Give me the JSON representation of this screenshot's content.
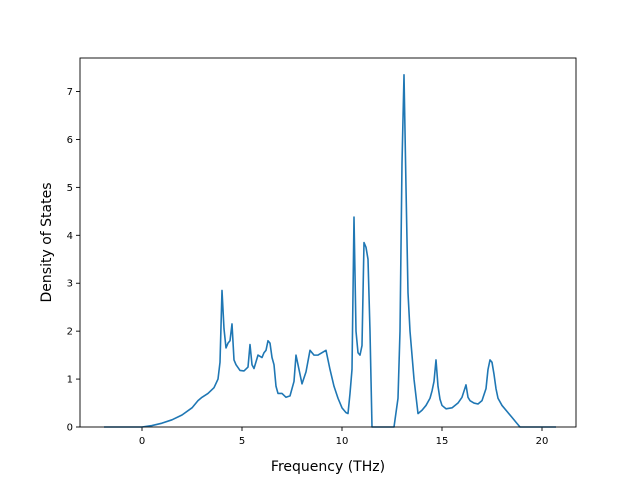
{
  "chart_data": {
    "type": "line",
    "title": "",
    "xlabel": "Frequency (THz)",
    "ylabel": "Density of States",
    "xlim": [
      -3.1,
      21.7
    ],
    "ylim": [
      0,
      7.7
    ],
    "x_ticks": [
      0,
      5,
      10,
      15,
      20
    ],
    "y_ticks": [
      0,
      1,
      2,
      3,
      4,
      5,
      6,
      7
    ],
    "grid": false,
    "legend": "none",
    "series": [
      {
        "color": "#1f77b4",
        "x": [
          -1.9,
          -1.0,
          0.0,
          0.5,
          1.0,
          1.5,
          2.0,
          2.5,
          2.8,
          3.0,
          3.3,
          3.6,
          3.8,
          3.9,
          4.0,
          4.1,
          4.2,
          4.3,
          4.4,
          4.5,
          4.6,
          4.7,
          4.9,
          5.1,
          5.3,
          5.4,
          5.5,
          5.6,
          5.8,
          6.0,
          6.1,
          6.2,
          6.3,
          6.4,
          6.5,
          6.6,
          6.7,
          6.8,
          7.0,
          7.2,
          7.4,
          7.6,
          7.7,
          7.8,
          8.0,
          8.2,
          8.4,
          8.6,
          8.8,
          9.0,
          9.2,
          9.4,
          9.6,
          9.8,
          10.0,
          10.2,
          10.3,
          10.4,
          10.5,
          10.6,
          10.7,
          10.8,
          10.9,
          11.0,
          11.1,
          11.2,
          11.3,
          11.4,
          11.5,
          11.6,
          11.8,
          12.2,
          12.6,
          12.8,
          12.9,
          13.0,
          13.1,
          13.2,
          13.3,
          13.4,
          13.5,
          13.6,
          13.8,
          14.0,
          14.2,
          14.4,
          14.5,
          14.6,
          14.7,
          14.8,
          14.9,
          15.0,
          15.2,
          15.5,
          15.8,
          16.0,
          16.1,
          16.2,
          16.3,
          16.4,
          16.6,
          16.8,
          17.0,
          17.2,
          17.3,
          17.4,
          17.5,
          17.6,
          17.7,
          17.8,
          18.0,
          18.3,
          18.5,
          18.7,
          18.9,
          19.5,
          20.0,
          20.7
        ],
        "y": [
          0.0,
          0.0,
          0.0,
          0.03,
          0.08,
          0.15,
          0.25,
          0.4,
          0.55,
          0.62,
          0.7,
          0.82,
          1.0,
          1.35,
          2.85,
          2.05,
          1.65,
          1.75,
          1.8,
          2.15,
          1.4,
          1.3,
          1.18,
          1.17,
          1.25,
          1.72,
          1.3,
          1.22,
          1.5,
          1.45,
          1.55,
          1.6,
          1.8,
          1.75,
          1.45,
          1.3,
          0.85,
          0.7,
          0.7,
          0.62,
          0.65,
          0.95,
          1.5,
          1.3,
          0.9,
          1.15,
          1.6,
          1.5,
          1.5,
          1.55,
          1.6,
          1.2,
          0.85,
          0.6,
          0.4,
          0.3,
          0.28,
          0.7,
          1.2,
          4.38,
          2.0,
          1.55,
          1.5,
          1.7,
          3.85,
          3.75,
          3.5,
          2.0,
          0.0,
          0.0,
          0.0,
          0.0,
          0.0,
          0.6,
          2.0,
          5.5,
          7.35,
          5.0,
          2.8,
          2.0,
          1.5,
          1.0,
          0.28,
          0.35,
          0.45,
          0.6,
          0.75,
          0.95,
          1.4,
          0.85,
          0.58,
          0.45,
          0.38,
          0.4,
          0.5,
          0.62,
          0.75,
          0.88,
          0.62,
          0.55,
          0.5,
          0.48,
          0.55,
          0.8,
          1.2,
          1.4,
          1.35,
          1.1,
          0.8,
          0.6,
          0.45,
          0.3,
          0.2,
          0.1,
          0.0,
          0.0,
          0.0,
          0.0
        ]
      }
    ]
  }
}
